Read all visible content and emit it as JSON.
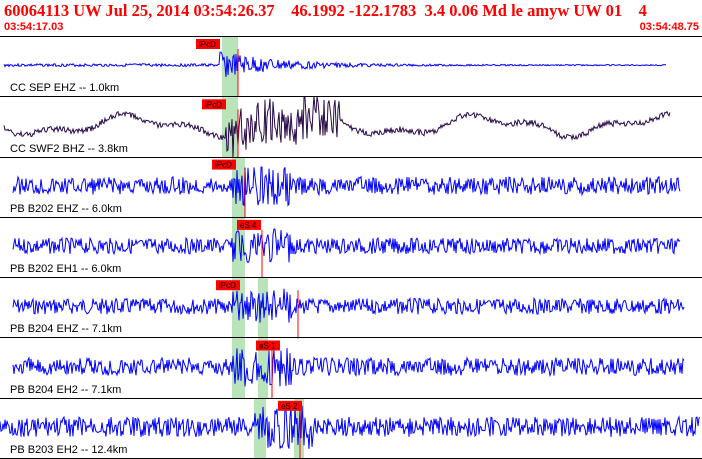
{
  "header": {
    "title": "60064113 UW Jul 25, 2014 03:54:26.37    46.1992 -122.1783  3.4 0.06 Md le amyw UW 01    4",
    "start_time": "03:54:17.03",
    "end_time": "03:54:48.75"
  },
  "colors": {
    "title": "#ff0000",
    "trace_main": "#0000ff",
    "trace_swf2": "#2a0a4a",
    "pick": "#ff0000",
    "window": "#b9e3b9"
  },
  "traces": [
    {
      "label": "CC SEP EHZ -- 1.0km",
      "pick": "iPcD"
    },
    {
      "label": "CC SWF2 BHZ -- 3.8km",
      "pick": "iPcD"
    },
    {
      "label": "PB B202 EHZ -- 6.0km",
      "pick": "iPcD"
    },
    {
      "label": "PB B202 EH1 -- 6.0km",
      "pick": "eS 4"
    },
    {
      "label": "PB B204 EHZ -- 7.1km",
      "pick": "iPcD"
    },
    {
      "label": "PB B204 EH2 -- 7.1km",
      "pick": "eS 1"
    },
    {
      "label": "PB B203 EH2 -- 12.4km",
      "pick": "eS 2"
    }
  ]
}
